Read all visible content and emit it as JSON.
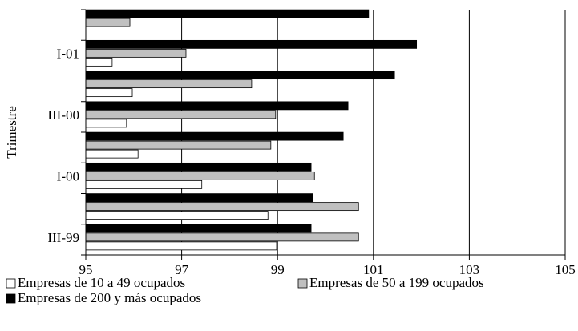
{
  "chart_data": {
    "type": "barh",
    "ylabel": "Trimestre",
    "categories": [
      "III-99",
      null,
      "I-00",
      null,
      "III-00",
      null,
      "I-01",
      null
    ],
    "series": [
      {
        "name": "Empresas de 10 a 49 ocupados",
        "color": "#ffffff",
        "values": [
          98.98,
          98.8,
          97.42,
          96.09,
          95.85,
          95.97,
          95.55,
          null
        ]
      },
      {
        "name": "Empresas de 50 a 199 ocupados",
        "color": "#c0c0c0",
        "values": [
          100.69,
          100.69,
          99.77,
          98.86,
          98.96,
          98.46,
          97.09,
          95.92
        ]
      },
      {
        "name": "Empresas de 200 y más ocupados",
        "color": "#000000",
        "values": [
          99.7,
          99.73,
          99.7,
          100.37,
          100.47,
          101.44,
          101.9,
          100.9
        ]
      }
    ],
    "xlim": [
      95,
      105
    ],
    "xticks": [
      95,
      97,
      99,
      101,
      103,
      105
    ],
    "grid": true
  }
}
